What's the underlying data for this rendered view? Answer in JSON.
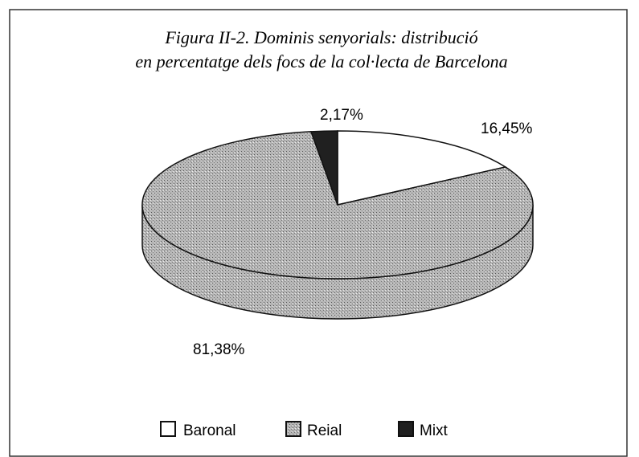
{
  "chart_data": {
    "type": "pie3d",
    "title": [
      "Figura II-2. Dominis senyorials: distribució",
      "en percentatge dels focs de la col·lecta de Barcelona"
    ],
    "categories": [
      "Baronal",
      "Reial",
      "Mixt"
    ],
    "values": [
      16.45,
      81.38,
      2.17
    ],
    "value_labels": [
      "16,45%",
      "81,38%",
      "2,17%"
    ],
    "colors": [
      "#ffffff",
      "#b4b4b4",
      "#202020"
    ],
    "legend": "bottom"
  }
}
